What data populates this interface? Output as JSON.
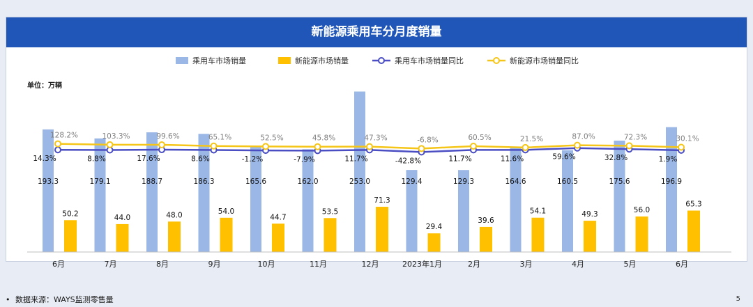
{
  "page": {
    "number": "5"
  },
  "source": {
    "bullet": "•",
    "text": "数据来源：WAYS监测零售量"
  },
  "chart_data": {
    "type": "bar",
    "title": "新能源乘用车分月度销量",
    "unit_label": "单位：万辆",
    "categories": [
      "6月",
      "7月",
      "8月",
      "9月",
      "10月",
      "11月",
      "12月",
      "2023年1月",
      "2月",
      "3月",
      "4月",
      "5月",
      "6月"
    ],
    "series": [
      {
        "name": "乘用车市场销量",
        "kind": "bar",
        "color": "#9bb7e6",
        "values": [
          193.3,
          179.1,
          188.7,
          186.3,
          165.6,
          162.0,
          253.0,
          129.4,
          129.3,
          164.6,
          160.5,
          175.6,
          196.9
        ]
      },
      {
        "name": "新能源市场销量",
        "kind": "bar",
        "color": "#ffc000",
        "values": [
          50.2,
          44.0,
          48.0,
          54.0,
          44.7,
          53.5,
          71.3,
          29.4,
          39.6,
          54.1,
          49.3,
          56.0,
          65.3
        ]
      },
      {
        "name": "乘用车市场销量同比",
        "kind": "line",
        "color": "#4a4ec2",
        "values": [
          14.3,
          8.8,
          17.6,
          8.6,
          -1.2,
          -7.9,
          11.7,
          -42.8,
          11.7,
          11.6,
          59.6,
          32.8,
          1.9
        ],
        "labels": [
          "14.3%",
          "8.8%",
          "17.6%",
          "8.6%",
          "-1.2%",
          "-7.9%",
          "11.7%",
          "-42.8%",
          "11.7%",
          "11.6%",
          "59.6%",
          "32.8%",
          "1.9%"
        ]
      },
      {
        "name": "新能源市场销量同比",
        "kind": "line",
        "color": "#f5c518",
        "values": [
          128.2,
          103.3,
          99.6,
          65.1,
          52.5,
          45.8,
          47.3,
          -6.8,
          60.5,
          21.5,
          87.0,
          72.3,
          30.1
        ],
        "labels": [
          "128.2%",
          "103.3%",
          "99.6%",
          "65.1%",
          "52.5%",
          "45.8%",
          "47.3%",
          "-6.8%",
          "60.5%",
          "21.5%",
          "87.0%",
          "72.3%",
          "30.1%"
        ]
      }
    ],
    "bar_labels": {
      "sales": [
        "193.3",
        "179.1",
        "188.7",
        "186.3",
        "165.6",
        "162.0",
        "253.0",
        "129.4",
        "129.3",
        "164.6",
        "160.5",
        "175.6",
        "196.9"
      ],
      "nev": [
        "50.2",
        "44.0",
        "48.0",
        "54.0",
        "44.7",
        "53.5",
        "71.3",
        "29.4",
        "39.6",
        "54.1",
        "49.3",
        "56.0",
        "65.3"
      ]
    },
    "legend_position": "top-center",
    "grid": false
  }
}
